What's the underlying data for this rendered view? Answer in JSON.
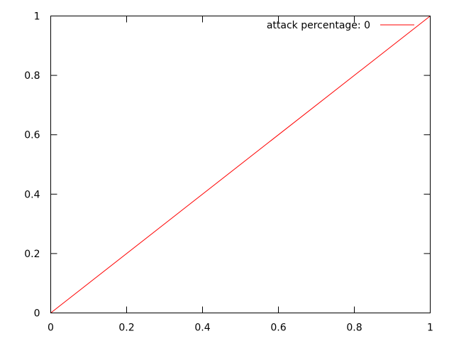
{
  "chart_data": {
    "type": "line",
    "title": "",
    "xlabel": "",
    "ylabel": "",
    "xlim": [
      0,
      1
    ],
    "ylim": [
      0,
      1
    ],
    "xticks": [
      "0",
      "0.2",
      "0.4",
      "0.6",
      "0.8",
      "1"
    ],
    "yticks": [
      "0",
      "0.2",
      "0.4",
      "0.6",
      "0.8",
      "1"
    ],
    "grid": false,
    "legend_position": "top-right",
    "series": [
      {
        "name": "attack percentage: 0",
        "color": "#ff0000",
        "x": [
          0,
          1
        ],
        "y": [
          0,
          1
        ]
      }
    ]
  }
}
